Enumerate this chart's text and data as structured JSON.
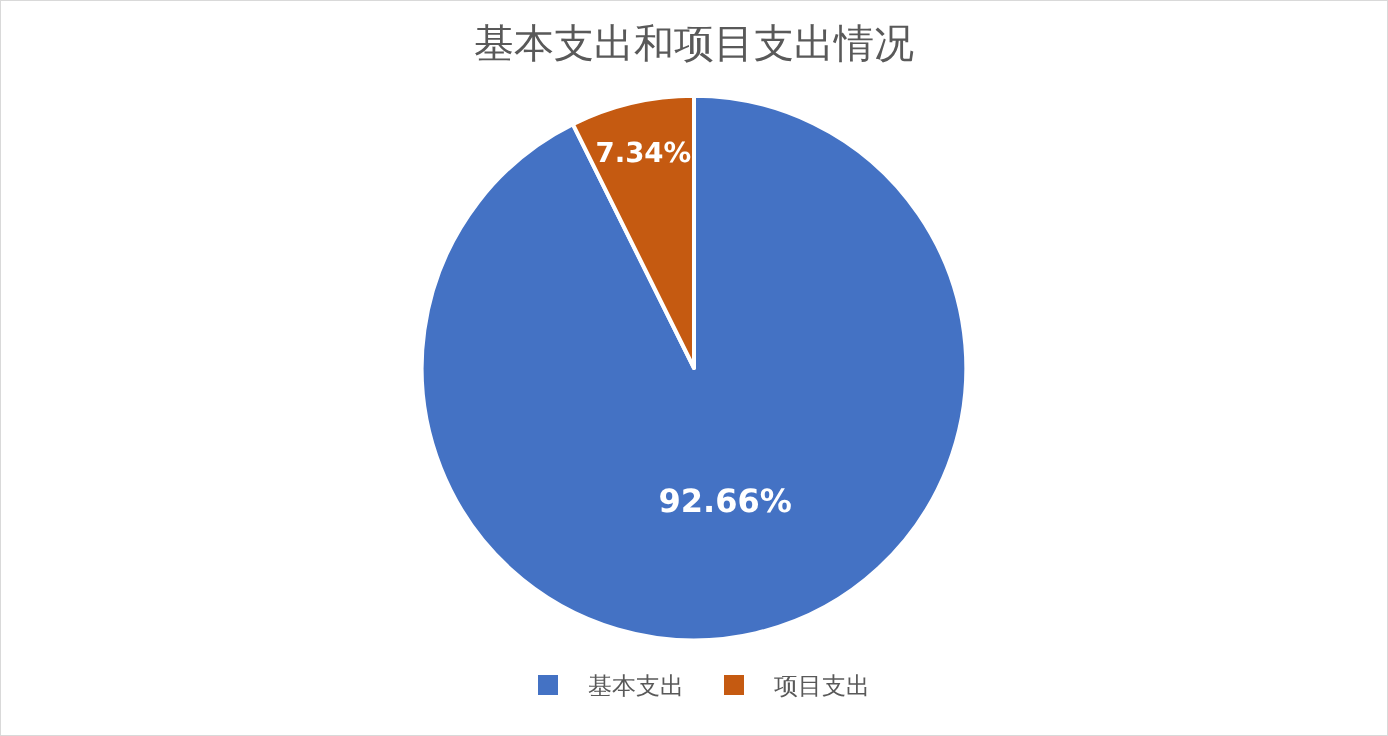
{
  "chart_data": {
    "type": "pie",
    "title": "基本支出和项目支出情况",
    "categories": [
      "基本支出",
      "项目支出"
    ],
    "values": [
      92.66,
      7.34
    ],
    "colors": [
      "#4472c4",
      "#c55a11"
    ],
    "value_labels": [
      "92.66%",
      "7.34%"
    ],
    "legend": "bottom"
  }
}
